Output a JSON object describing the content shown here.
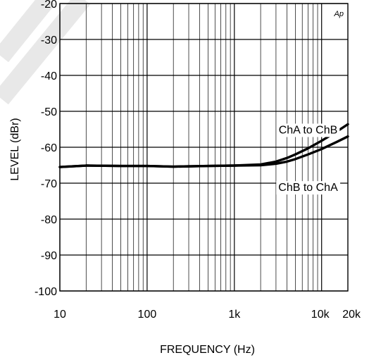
{
  "chart_data": {
    "type": "line",
    "title": "",
    "xlabel": "FREQUENCY (Hz)",
    "ylabel": "LEVEL (dBr)",
    "corner_label": "Ap",
    "x_scale": "log",
    "xlim": [
      10,
      20000
    ],
    "ylim": [
      -100,
      -20
    ],
    "grid": true,
    "x_ticks": [
      {
        "value": 10,
        "label": "10"
      },
      {
        "value": 100,
        "label": "100"
      },
      {
        "value": 1000,
        "label": "1k"
      },
      {
        "value": 10000,
        "label": "10k"
      },
      {
        "value": 20000,
        "label": "20k"
      }
    ],
    "y_ticks": [
      {
        "value": -20,
        "label": "-20"
      },
      {
        "value": -30,
        "label": "-30"
      },
      {
        "value": -40,
        "label": "-40"
      },
      {
        "value": -50,
        "label": "-50"
      },
      {
        "value": -60,
        "label": "-60"
      },
      {
        "value": -70,
        "label": "-70"
      },
      {
        "value": -80,
        "label": "-80"
      },
      {
        "value": -90,
        "label": "-90"
      },
      {
        "value": -100,
        "label": "-100"
      }
    ],
    "series": [
      {
        "name": "ChA to ChB",
        "x": [
          10,
          20,
          50,
          100,
          200,
          500,
          1000,
          2000,
          3000,
          4000,
          5000,
          7000,
          10000,
          15000,
          20000
        ],
        "y": [
          -65.5,
          -65.1,
          -65.2,
          -65.2,
          -65.4,
          -65.2,
          -65.1,
          -64.8,
          -64.0,
          -63.0,
          -62.0,
          -60.3,
          -58.2,
          -55.6,
          -53.6
        ]
      },
      {
        "name": "ChB to ChA",
        "x": [
          10,
          20,
          50,
          100,
          200,
          500,
          1000,
          2000,
          3000,
          4000,
          5000,
          7000,
          10000,
          15000,
          20000
        ],
        "y": [
          -65.5,
          -65.1,
          -65.2,
          -65.2,
          -65.4,
          -65.2,
          -65.1,
          -65.0,
          -64.6,
          -64.0,
          -63.3,
          -62.0,
          -60.5,
          -58.5,
          -57.0
        ]
      }
    ],
    "annotations": [
      {
        "text": "ChA to ChB",
        "series": "ChA to ChB",
        "x": 7000,
        "y": -55
      },
      {
        "text": "ChB to ChA",
        "series": "ChB to ChA",
        "x": 7000,
        "y": -71
      }
    ]
  }
}
